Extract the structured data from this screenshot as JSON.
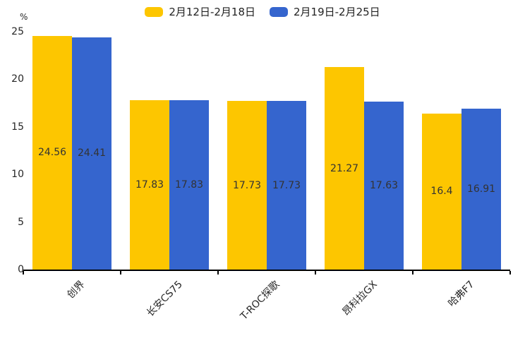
{
  "chart_data": {
    "type": "bar",
    "title": "",
    "xlabel": "",
    "ylabel": "%",
    "ylim": [
      0,
      25
    ],
    "yticks": [
      0,
      5,
      10,
      15,
      20,
      25
    ],
    "grid": false,
    "legend_position": "top-center",
    "categories": [
      "创界",
      "长安CS75",
      "T-ROC探歌",
      "昂科拉GX",
      "哈弗F7"
    ],
    "series": [
      {
        "name": "2月12日-2月18日",
        "color": "#FDC600",
        "values": [
          24.56,
          17.83,
          17.73,
          21.27,
          16.4
        ]
      },
      {
        "name": "2月19日-2月25日",
        "color": "#3565CE",
        "values": [
          24.41,
          17.83,
          17.73,
          17.63,
          16.91
        ]
      }
    ],
    "value_labels": {
      "series1": [
        "24.56",
        "17.83",
        "17.73",
        "21.27",
        "16.4"
      ],
      "series2": [
        "24.41",
        "17.83",
        "17.73",
        "17.63",
        "16.91"
      ]
    }
  },
  "colors": {
    "background": "#ffffff",
    "axis": "#000000",
    "text": "#333333"
  }
}
